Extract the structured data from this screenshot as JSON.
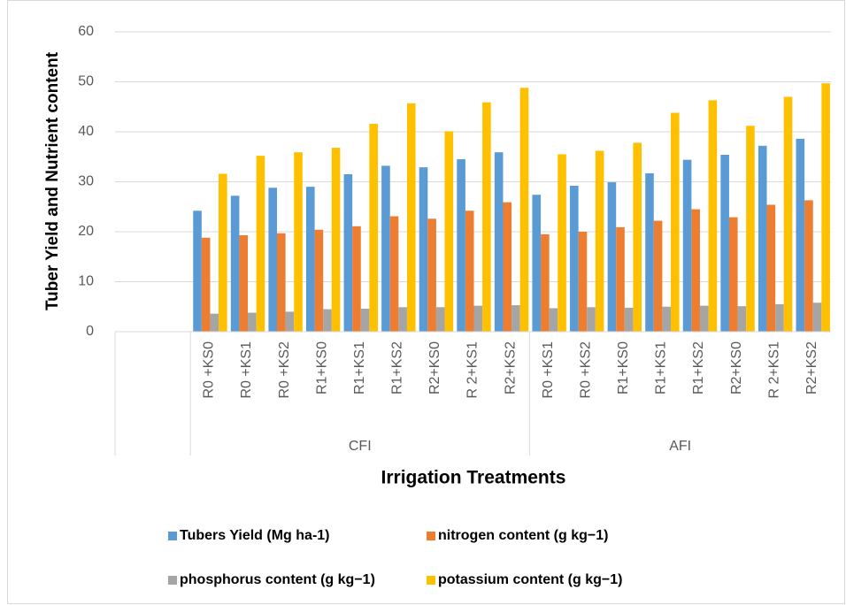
{
  "chart_data": {
    "type": "bar",
    "y_label": "Tuber Yield and Nutrient content",
    "x_label": "Irrigation Treatments",
    "groups": [
      {
        "label": null,
        "categories": [
          null,
          null
        ]
      },
      {
        "label": "CFI",
        "categories": [
          "R0 +KS0",
          "R0 +KS1",
          "R0 +KS2",
          "R1+KS0",
          "R1+KS1",
          "R1+KS2",
          "R2+KS0",
          "R 2+KS1",
          "R2+KS2"
        ]
      },
      {
        "label": "AFI",
        "categories": [
          "R0 +KS1",
          "R0 +KS2",
          "R1+KS0",
          "R1+KS1",
          "R1+KS2",
          "R2+KS0",
          "R 2+KS1",
          "R2+KS2"
        ]
      }
    ],
    "series": [
      {
        "name": "Tubers Yield (Mg ha-1)",
        "color": "#5b9bd5",
        "values": [
          null,
          null,
          24.2,
          27.2,
          28.8,
          29.0,
          31.5,
          33.2,
          32.9,
          34.5,
          35.9,
          27.4,
          29.2,
          29.9,
          31.7,
          34.4,
          35.4,
          37.2,
          38.6
        ]
      },
      {
        "name": "nitrogen content (g kg−1)",
        "color": "#ed7d31",
        "values": [
          null,
          null,
          18.8,
          19.3,
          19.7,
          20.4,
          21.1,
          23.1,
          22.6,
          24.2,
          25.9,
          19.5,
          20.0,
          20.9,
          22.2,
          24.5,
          22.9,
          25.4,
          26.3
        ]
      },
      {
        "name": "phosphorus content (g kg−1)",
        "color": "#a5a5a5",
        "values": [
          null,
          null,
          3.6,
          3.8,
          4.0,
          4.5,
          4.6,
          4.9,
          4.9,
          5.2,
          5.3,
          4.7,
          4.9,
          4.8,
          5.0,
          5.2,
          5.1,
          5.5,
          5.8
        ]
      },
      {
        "name": "potassium content (g kg−1)",
        "color": "#ffc000",
        "values": [
          null,
          null,
          31.6,
          35.2,
          35.9,
          36.8,
          41.6,
          45.7,
          40.1,
          45.9,
          48.8,
          35.5,
          36.2,
          37.8,
          43.8,
          46.3,
          41.2,
          47.0,
          49.7
        ]
      }
    ],
    "ylim": [
      0,
      60
    ],
    "yticks": [
      0,
      10,
      20,
      30,
      40,
      50,
      60
    ],
    "grid": true,
    "legend": "bottom"
  }
}
